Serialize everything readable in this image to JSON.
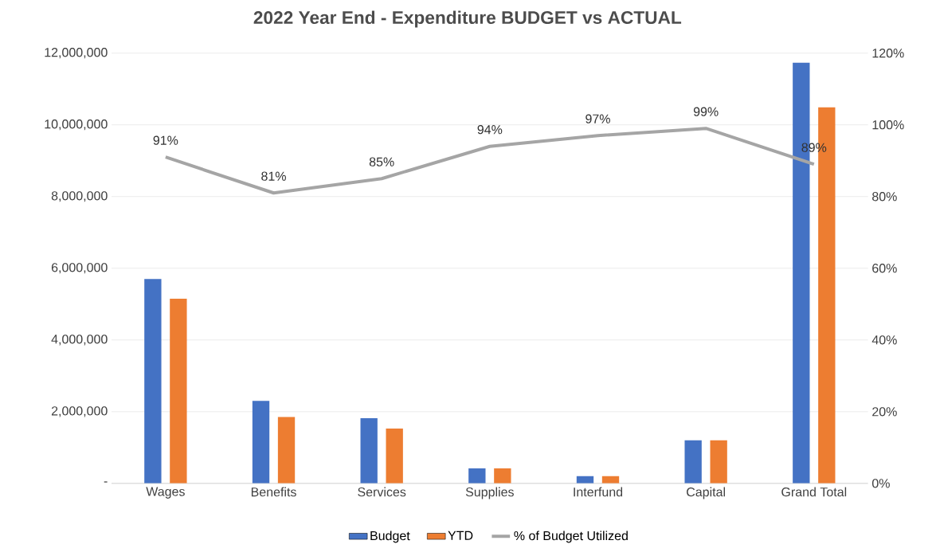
{
  "chart_data": {
    "type": "bar",
    "title": "2022 Year End - Expenditure BUDGET vs ACTUAL",
    "categories": [
      "Wages",
      "Benefits",
      "Services",
      "Supplies",
      "Interfund",
      "Capital",
      "Grand Total"
    ],
    "series": [
      {
        "name": "Budget",
        "color": "#4472c4",
        "values": [
          5700000,
          2300000,
          1820000,
          420000,
          200000,
          1200000,
          11730000
        ]
      },
      {
        "name": "YTD",
        "color": "#ed7d31",
        "values": [
          5150000,
          1850000,
          1530000,
          420000,
          200000,
          1200000,
          10490000
        ]
      },
      {
        "name": "% of Budget Utilized",
        "type": "line",
        "axis": "y2",
        "color": "#a5a5a5",
        "values": [
          91,
          81,
          85,
          94,
          97,
          99,
          89
        ],
        "value_labels": [
          "91%",
          "81%",
          "85%",
          "94%",
          "97%",
          "99%",
          "89%"
        ]
      }
    ],
    "ylim": [
      0,
      12000000
    ],
    "yticks": [
      {
        "value": 0,
        "label": "-"
      },
      {
        "value": 2000000,
        "label": "2,000,000"
      },
      {
        "value": 4000000,
        "label": "4,000,000"
      },
      {
        "value": 6000000,
        "label": "6,000,000"
      },
      {
        "value": 8000000,
        "label": "8,000,000"
      },
      {
        "value": 10000000,
        "label": "10,000,000"
      },
      {
        "value": 12000000,
        "label": "12,000,000"
      }
    ],
    "y2lim": [
      0,
      120
    ],
    "y2ticks": [
      {
        "value": 0,
        "label": "0%"
      },
      {
        "value": 20,
        "label": "20%"
      },
      {
        "value": 40,
        "label": "40%"
      },
      {
        "value": 60,
        "label": "60%"
      },
      {
        "value": 80,
        "label": "80%"
      },
      {
        "value": 100,
        "label": "100%"
      },
      {
        "value": 120,
        "label": "120%"
      }
    ],
    "grid": "y",
    "legend": "bottom",
    "marker": "none"
  }
}
